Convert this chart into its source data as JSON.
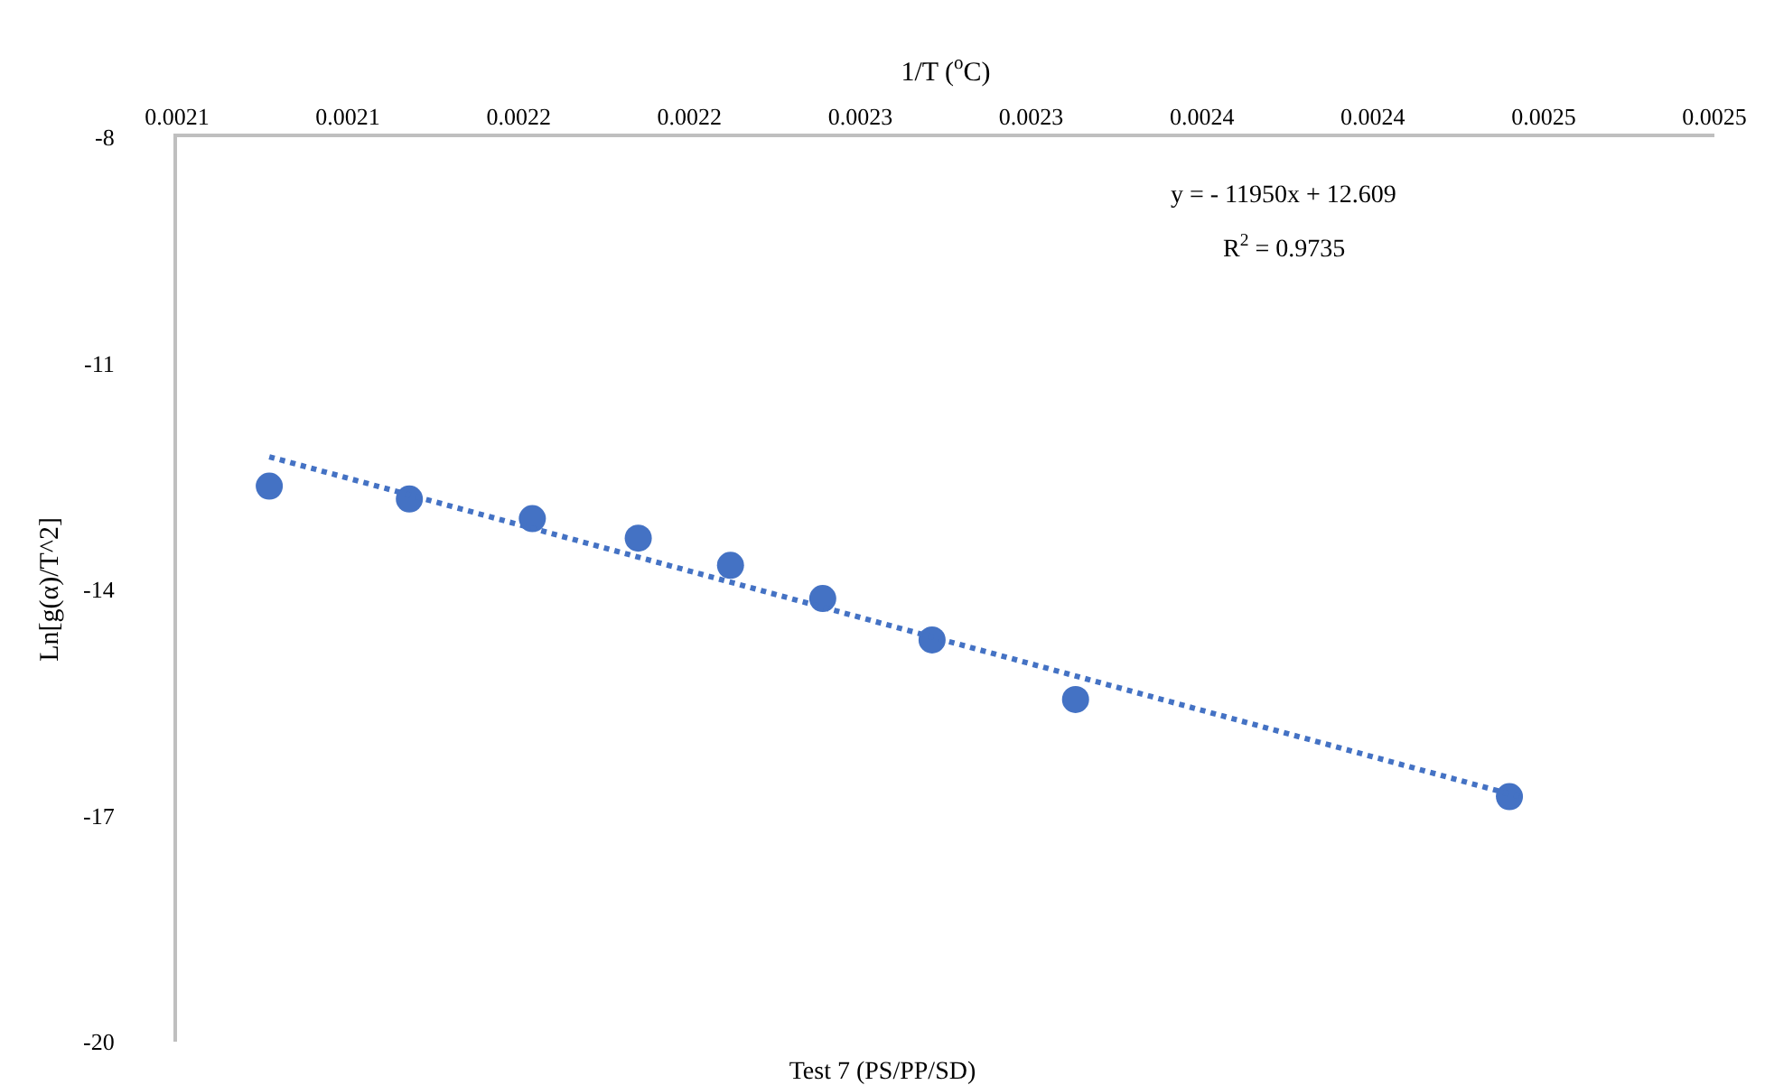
{
  "chart_data": {
    "type": "scatter",
    "title": "Test 7 (PS/PP/SD)",
    "xlabel": "1/T ($^{o}$C)",
    "ylabel": "Ln[g(α)/T^2]",
    "x": [
      0.002077,
      0.002118,
      0.002154,
      0.002185,
      0.002212,
      0.002239,
      0.002271,
      0.002313,
      0.00244
    ],
    "series": [
      {
        "color": "#4472c4",
        "values": [
          -12.63,
          -12.8,
          -13.06,
          -13.32,
          -13.68,
          -14.12,
          -14.67,
          -15.46,
          -16.75
        ]
      },
      {
        "type": "line",
        "color": "#4472c4",
        "line_style": "dotted",
        "marker": "none",
        "x": [
          0.002077,
          0.002443
        ],
        "values": [
          -12.24,
          -16.75
        ]
      }
    ],
    "xlim": [
      0.00205,
      0.0025
    ],
    "xticks": [
      {
        "value": 0.00205,
        "label": "0.0021"
      },
      {
        "value": 0.0021,
        "label": "0.0021"
      },
      {
        "value": 0.00215,
        "label": "0.0022"
      },
      {
        "value": 0.0022,
        "label": "0.0022"
      },
      {
        "value": 0.00225,
        "label": "0.0023"
      },
      {
        "value": 0.0023,
        "label": "0.0023"
      },
      {
        "value": 0.00235,
        "label": "0.0024"
      },
      {
        "value": 0.0024,
        "label": "0.0024"
      },
      {
        "value": 0.00245,
        "label": "0.0025"
      },
      {
        "value": 0.0025,
        "label": "0.0025"
      }
    ],
    "ylim": [
      -20,
      -8
    ],
    "yticks": [
      -8,
      -11,
      -14,
      -17,
      -20
    ],
    "marker": "circle",
    "grid": false,
    "annotations": [
      "y = - 11950x + 12.609",
      "R$^{2}$ = 0.9735"
    ]
  }
}
